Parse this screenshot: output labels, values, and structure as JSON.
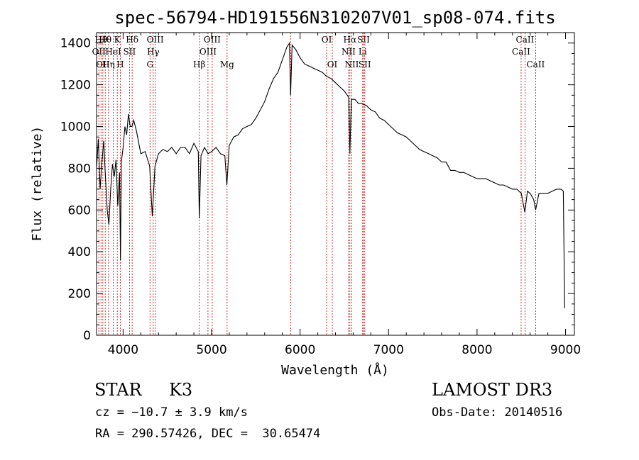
{
  "chart_data": {
    "type": "line",
    "title": "spec-56794-HD191556N310207V01_sp08-074.fits",
    "xlabel": "Wavelength (Å)",
    "ylabel": "Flux (relative)",
    "xlim": [
      3700,
      9100
    ],
    "ylim": [
      0,
      1450
    ],
    "xticks": [
      4000,
      5000,
      6000,
      7000,
      8000,
      9000
    ],
    "yticks": [
      0,
      200,
      400,
      600,
      800,
      1000,
      1200,
      1400
    ],
    "grid": false,
    "series": [
      {
        "values": [
          [
            3700,
            800
          ],
          [
            3720,
            940
          ],
          [
            3740,
            700
          ],
          [
            3760,
            830
          ],
          [
            3780,
            930
          ],
          [
            3800,
            760
          ],
          [
            3820,
            600
          ],
          [
            3840,
            530
          ],
          [
            3860,
            700
          ],
          [
            3880,
            820
          ],
          [
            3900,
            760
          ],
          [
            3920,
            840
          ],
          [
            3940,
            620
          ],
          [
            3960,
            780
          ],
          [
            3970,
            360
          ],
          [
            3980,
            830
          ],
          [
            4000,
            900
          ],
          [
            4020,
            1000
          ],
          [
            4040,
            960
          ],
          [
            4060,
            1060
          ],
          [
            4080,
            1000
          ],
          [
            4100,
            1000
          ],
          [
            4120,
            1030
          ],
          [
            4150,
            980
          ],
          [
            4200,
            870
          ],
          [
            4250,
            880
          ],
          [
            4300,
            810
          ],
          [
            4330,
            570
          ],
          [
            4360,
            810
          ],
          [
            4400,
            870
          ],
          [
            4450,
            890
          ],
          [
            4500,
            880
          ],
          [
            4550,
            900
          ],
          [
            4600,
            870
          ],
          [
            4650,
            900
          ],
          [
            4700,
            900
          ],
          [
            4750,
            870
          ],
          [
            4800,
            920
          ],
          [
            4850,
            880
          ],
          [
            4861,
            560
          ],
          [
            4880,
            860
          ],
          [
            4920,
            900
          ],
          [
            4960,
            870
          ],
          [
            5000,
            880
          ],
          [
            5050,
            900
          ],
          [
            5100,
            870
          ],
          [
            5150,
            860
          ],
          [
            5172,
            720
          ],
          [
            5200,
            910
          ],
          [
            5250,
            950
          ],
          [
            5300,
            960
          ],
          [
            5350,
            990
          ],
          [
            5400,
            1000
          ],
          [
            5450,
            1010
          ],
          [
            5500,
            1040
          ],
          [
            5550,
            1080
          ],
          [
            5600,
            1120
          ],
          [
            5650,
            1180
          ],
          [
            5700,
            1230
          ],
          [
            5750,
            1260
          ],
          [
            5800,
            1320
          ],
          [
            5850,
            1380
          ],
          [
            5880,
            1400
          ],
          [
            5893,
            1150
          ],
          [
            5910,
            1390
          ],
          [
            5950,
            1370
          ],
          [
            6000,
            1330
          ],
          [
            6050,
            1300
          ],
          [
            6100,
            1290
          ],
          [
            6150,
            1280
          ],
          [
            6200,
            1270
          ],
          [
            6250,
            1260
          ],
          [
            6300,
            1240
          ],
          [
            6350,
            1230
          ],
          [
            6400,
            1210
          ],
          [
            6450,
            1190
          ],
          [
            6500,
            1170
          ],
          [
            6550,
            1140
          ],
          [
            6563,
            870
          ],
          [
            6580,
            1130
          ],
          [
            6620,
            1130
          ],
          [
            6660,
            1110
          ],
          [
            6700,
            1110
          ],
          [
            6750,
            1100
          ],
          [
            6800,
            1080
          ],
          [
            6850,
            1070
          ],
          [
            6900,
            1040
          ],
          [
            6950,
            1030
          ],
          [
            7000,
            1010
          ],
          [
            7050,
            990
          ],
          [
            7100,
            970
          ],
          [
            7150,
            960
          ],
          [
            7200,
            950
          ],
          [
            7250,
            930
          ],
          [
            7300,
            910
          ],
          [
            7350,
            890
          ],
          [
            7400,
            880
          ],
          [
            7450,
            870
          ],
          [
            7500,
            860
          ],
          [
            7550,
            850
          ],
          [
            7600,
            830
          ],
          [
            7650,
            830
          ],
          [
            7700,
            790
          ],
          [
            7750,
            790
          ],
          [
            7800,
            780
          ],
          [
            7850,
            780
          ],
          [
            7900,
            770
          ],
          [
            7950,
            760
          ],
          [
            8000,
            750
          ],
          [
            8050,
            750
          ],
          [
            8100,
            750
          ],
          [
            8150,
            740
          ],
          [
            8200,
            730
          ],
          [
            8250,
            720
          ],
          [
            8300,
            720
          ],
          [
            8350,
            710
          ],
          [
            8400,
            700
          ],
          [
            8450,
            700
          ],
          [
            8500,
            680
          ],
          [
            8540,
            590
          ],
          [
            8570,
            690
          ],
          [
            8600,
            680
          ],
          [
            8640,
            650
          ],
          [
            8662,
            600
          ],
          [
            8700,
            680
          ],
          [
            8750,
            680
          ],
          [
            8800,
            680
          ],
          [
            8850,
            690
          ],
          [
            8900,
            700
          ],
          [
            8950,
            700
          ],
          [
            8975,
            690
          ],
          [
            8990,
            130
          ]
        ]
      }
    ],
    "lines": [
      {
        "x": 3726,
        "labels": [
          "OII"
        ],
        "row": 1
      },
      {
        "x": 3750,
        "labels": [
          "Hθ"
        ],
        "row": 0
      },
      {
        "x": 3771,
        "labels": [
          "OII"
        ],
        "row": 2
      },
      {
        "x": 3798,
        "labels": [
          "Hθ"
        ],
        "row": 0
      },
      {
        "x": 3835,
        "labels": [
          "Hη"
        ],
        "row": 2
      },
      {
        "x": 3889,
        "labels": [
          "HeI"
        ],
        "row": 1
      },
      {
        "x": 3934,
        "labels": [
          "K"
        ],
        "row": 0
      },
      {
        "x": 3968,
        "labels": [
          "H"
        ],
        "row": 2
      },
      {
        "x": 4072,
        "labels": [
          "SII"
        ],
        "row": 1
      },
      {
        "x": 4102,
        "labels": [
          "Hδ"
        ],
        "row": 0
      },
      {
        "x": 4304,
        "labels": [
          "G"
        ],
        "row": 2
      },
      {
        "x": 4340,
        "labels": [
          "Hγ"
        ],
        "row": 1
      },
      {
        "x": 4363,
        "labels": [
          "OIII"
        ],
        "row": 0
      },
      {
        "x": 4861,
        "labels": [
          "Hβ"
        ],
        "row": 2
      },
      {
        "x": 4959,
        "labels": [
          "OIII"
        ],
        "row": 1
      },
      {
        "x": 5007,
        "labels": [
          "OIII"
        ],
        "row": 0
      },
      {
        "x": 5175,
        "labels": [
          "Mg"
        ],
        "row": 2
      },
      {
        "x": 5893,
        "labels": [],
        "row": 0
      },
      {
        "x": 6300,
        "labels": [
          "OI"
        ],
        "row": 0
      },
      {
        "x": 6364,
        "labels": [
          "OI"
        ],
        "row": 2
      },
      {
        "x": 6548,
        "labels": [
          "NII"
        ],
        "row": 1
      },
      {
        "x": 6563,
        "labels": [
          "Hα"
        ],
        "row": 0
      },
      {
        "x": 6584,
        "labels": [
          "NII"
        ],
        "row": 2
      },
      {
        "x": 6707,
        "labels": [
          "Li"
        ],
        "row": 1
      },
      {
        "x": 6717,
        "labels": [
          "SII"
        ],
        "row": 0
      },
      {
        "x": 6731,
        "labels": [
          "SII"
        ],
        "row": 2
      },
      {
        "x": 8498,
        "labels": [
          "CaII"
        ],
        "row": 1
      },
      {
        "x": 8542,
        "labels": [
          "CaII"
        ],
        "row": 0
      },
      {
        "x": 8662,
        "labels": [
          "CaII"
        ],
        "row": 2
      }
    ],
    "colors": {
      "spectrum": "#000000",
      "line_marker": "#cc0000",
      "text": "#000000"
    }
  },
  "info": {
    "object_class": "STAR",
    "subclass": "K3",
    "survey": "LAMOST DR3",
    "redshift": "cz = −10.7 ± 3.9 km/s",
    "obs_date": "Obs-Date: 20140516",
    "coords": "RA = 290.57426, DEC =  30.65474"
  }
}
